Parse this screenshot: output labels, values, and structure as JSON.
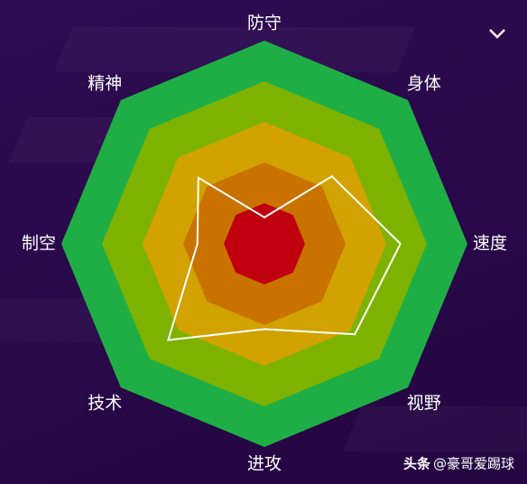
{
  "chart_data": {
    "type": "radar",
    "categories": [
      "防守",
      "身体",
      "速度",
      "视野",
      "进攻",
      "技术",
      "制空",
      "精神"
    ],
    "values": [
      13,
      47,
      67,
      63,
      42,
      67,
      33,
      46
    ],
    "color": "#ffffff",
    "rlim": [
      0,
      100
    ],
    "rticks": [
      20,
      40,
      60,
      80,
      100
    ],
    "ring_colors": [
      "#c0000e",
      "#c97200",
      "#d2a200",
      "#7db300",
      "#1fae45"
    ]
  },
  "watermark": {
    "source": "头条",
    "author": "@豪哥爱踢球"
  }
}
